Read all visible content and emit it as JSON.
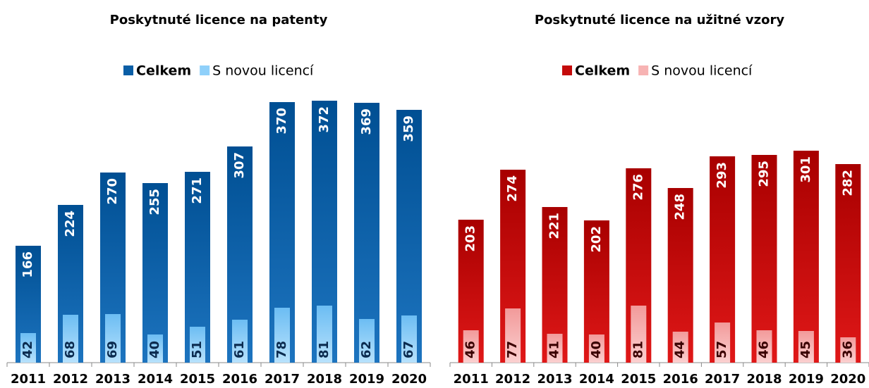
{
  "chart_data": [
    {
      "type": "bar",
      "title": "Poskytnuté licence na patenty",
      "categories": [
        "2011",
        "2012",
        "2013",
        "2014",
        "2015",
        "2016",
        "2017",
        "2018",
        "2019",
        "2020"
      ],
      "series": [
        {
          "name": "Celkem",
          "color": "#0a5ea6",
          "values": [
            166,
            224,
            270,
            255,
            271,
            307,
            370,
            372,
            369,
            359
          ]
        },
        {
          "name": "S novou licencí",
          "color": "#8fd0fa",
          "values": [
            42,
            68,
            69,
            40,
            51,
            61,
            78,
            81,
            62,
            67
          ]
        }
      ],
      "ylim": [
        0,
        400
      ]
    },
    {
      "type": "bar",
      "title": "Poskytnuté licence na užitné vzory",
      "categories": [
        "2011",
        "2012",
        "2013",
        "2014",
        "2015",
        "2016",
        "2017",
        "2018",
        "2019",
        "2020"
      ],
      "series": [
        {
          "name": "Celkem",
          "color": "#c40a0a",
          "values": [
            203,
            274,
            221,
            202,
            276,
            248,
            293,
            295,
            301,
            282
          ]
        },
        {
          "name": "S novou licencí",
          "color": "#f7b3b3",
          "values": [
            46,
            77,
            41,
            40,
            81,
            44,
            57,
            46,
            45,
            36
          ]
        }
      ],
      "ylim": [
        0,
        400
      ]
    }
  ]
}
